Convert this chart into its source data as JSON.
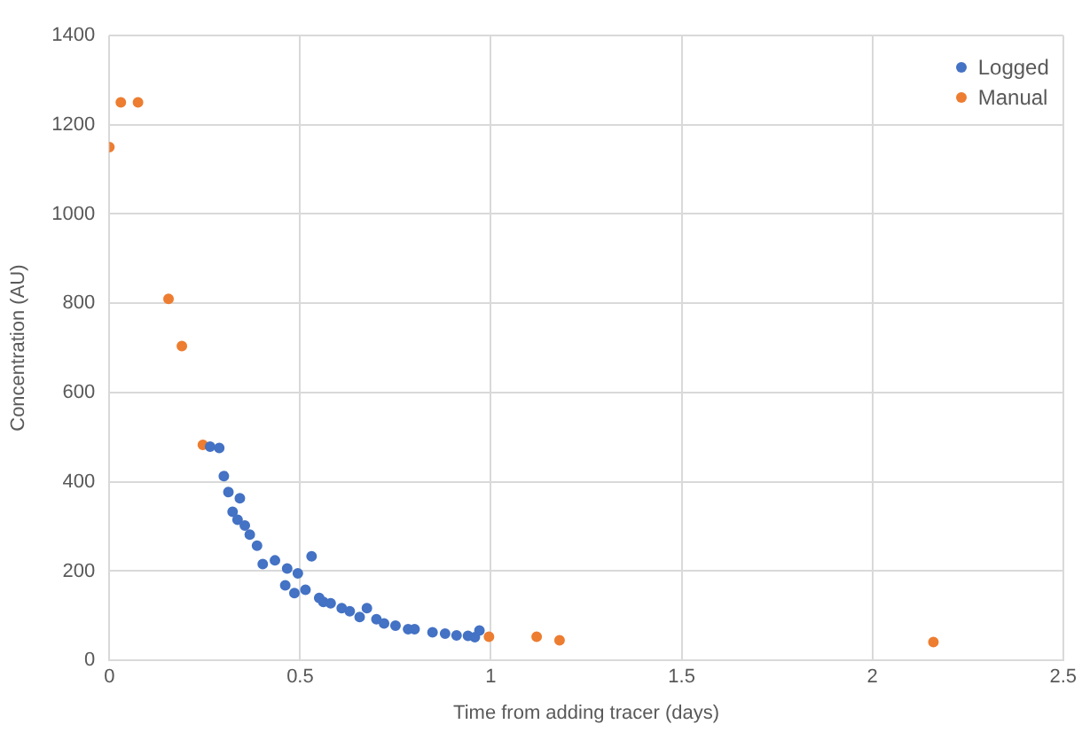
{
  "chart_data": {
    "type": "scatter",
    "xlabel": "Time from adding tracer (days)",
    "ylabel": "Concentration (AU)",
    "xlim": [
      0,
      2.5
    ],
    "ylim": [
      0,
      1400
    ],
    "xticks": [
      0,
      0.5,
      1,
      1.5,
      2,
      2.5
    ],
    "yticks": [
      0,
      200,
      400,
      600,
      800,
      1000,
      1200,
      1400
    ],
    "grid": true,
    "legend": "top right",
    "marker": "circle",
    "series": [
      {
        "name": "Logged",
        "color": "#4472c4",
        "x": [
          0.264,
          0.288,
          0.3,
          0.312,
          0.323,
          0.336,
          0.342,
          0.355,
          0.368,
          0.387,
          0.402,
          0.434,
          0.461,
          0.466,
          0.485,
          0.494,
          0.514,
          0.53,
          0.55,
          0.561,
          0.58,
          0.609,
          0.63,
          0.656,
          0.675,
          0.7,
          0.72,
          0.75,
          0.783,
          0.8,
          0.847,
          0.88,
          0.91,
          0.94,
          0.958,
          0.97
        ],
        "values": [
          479,
          476,
          413,
          377,
          333,
          315,
          363,
          302,
          282,
          257,
          216,
          224,
          168,
          206,
          151,
          195,
          158,
          233,
          140,
          131,
          128,
          117,
          110,
          97,
          117,
          92,
          83,
          78,
          70,
          70,
          63,
          60,
          56,
          55,
          52,
          67
        ]
      },
      {
        "name": "Manual",
        "color": "#ed7d31",
        "x": [
          0,
          0.03,
          0.075,
          0.155,
          0.19,
          0.245,
          0.995,
          1.12,
          1.18,
          2.16
        ],
        "values": [
          1150,
          1250,
          1250,
          810,
          704,
          483,
          53,
          53,
          45,
          41
        ]
      }
    ]
  }
}
